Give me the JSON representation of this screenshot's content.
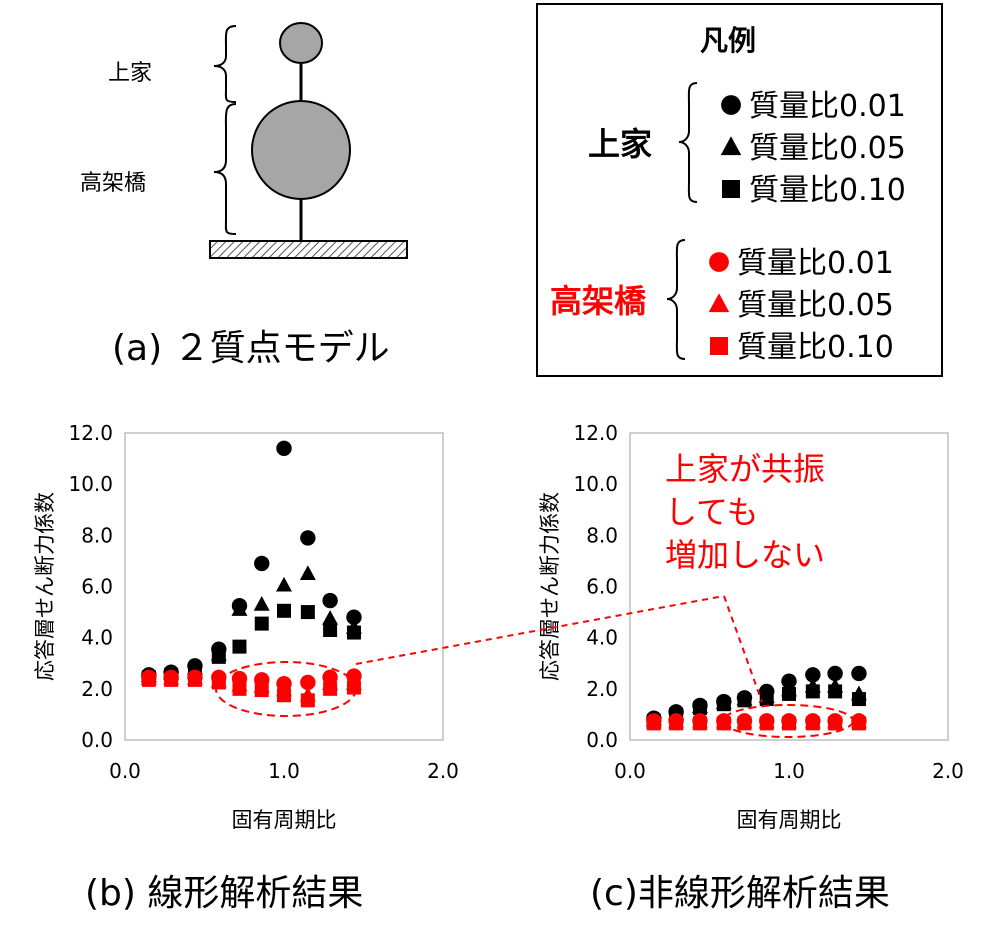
{
  "model": {
    "label_upper": "上家",
    "label_lower": "高架橋",
    "caption": "(a) ２質点モデル"
  },
  "legend": {
    "title": "凡例",
    "groups": [
      {
        "name": "上家",
        "color": "#000000",
        "entries": [
          {
            "marker": "circle",
            "label": "質量比0.01"
          },
          {
            "marker": "triangle",
            "label": "質量比0.05"
          },
          {
            "marker": "square",
            "label": "質量比0.10"
          }
        ]
      },
      {
        "name": "高架橋",
        "color": "#ff0000",
        "entries": [
          {
            "marker": "circle",
            "label": "質量比0.01"
          },
          {
            "marker": "triangle",
            "label": "質量比0.05"
          },
          {
            "marker": "square",
            "label": "質量比0.10"
          }
        ]
      }
    ]
  },
  "chart_data": [
    {
      "type": "scatter",
      "caption": "(b) 線形解析結果",
      "xlabel": "固有周期比",
      "ylabel": "応答層せん断力係数",
      "xlim": [
        0,
        2
      ],
      "ylim": [
        0,
        12
      ],
      "xticks": [
        "0.0",
        "1.0",
        "2.0"
      ],
      "yticks": [
        "0.0",
        "2.0",
        "4.0",
        "6.0",
        "8.0",
        "10.0",
        "12.0"
      ],
      "grid": false,
      "series": [
        {
          "group": "上家",
          "marker": "circle",
          "color": "#000000",
          "x": [
            0.15,
            0.29,
            0.44,
            0.59,
            0.72,
            0.86,
            1.0,
            1.15,
            1.29,
            1.44
          ],
          "y": [
            2.55,
            2.65,
            2.9,
            3.55,
            5.25,
            6.9,
            11.4,
            7.9,
            5.45,
            4.8
          ]
        },
        {
          "group": "上家",
          "marker": "triangle",
          "color": "#000000",
          "x": [
            0.15,
            0.29,
            0.44,
            0.59,
            0.72,
            0.86,
            1.0,
            1.15,
            1.29,
            1.44
          ],
          "y": [
            2.5,
            2.6,
            2.8,
            3.35,
            5.1,
            5.3,
            6.05,
            6.5,
            4.75,
            4.4
          ]
        },
        {
          "group": "上家",
          "marker": "square",
          "color": "#000000",
          "x": [
            0.15,
            0.29,
            0.44,
            0.59,
            0.72,
            0.86,
            1.0,
            1.15,
            1.29,
            1.44
          ],
          "y": [
            2.45,
            2.55,
            2.7,
            3.25,
            3.65,
            4.55,
            5.05,
            5.0,
            4.3,
            4.2
          ]
        },
        {
          "group": "高架橋",
          "marker": "circle",
          "color": "#ff0000",
          "x": [
            0.15,
            0.29,
            0.44,
            0.59,
            0.72,
            0.86,
            1.0,
            1.15,
            1.29,
            1.44
          ],
          "y": [
            2.45,
            2.45,
            2.45,
            2.45,
            2.4,
            2.35,
            2.2,
            2.25,
            2.45,
            2.5
          ]
        },
        {
          "group": "高架橋",
          "marker": "triangle",
          "color": "#ff0000",
          "x": [
            0.15,
            0.29,
            0.44,
            0.59,
            0.72,
            0.86,
            1.0,
            1.15,
            1.29,
            1.44
          ],
          "y": [
            2.4,
            2.4,
            2.4,
            2.3,
            2.15,
            2.1,
            1.95,
            1.75,
            2.2,
            2.2
          ]
        },
        {
          "group": "高架橋",
          "marker": "square",
          "color": "#ff0000",
          "x": [
            0.15,
            0.29,
            0.44,
            0.59,
            0.72,
            0.86,
            1.0,
            1.15,
            1.29,
            1.44
          ],
          "y": [
            2.35,
            2.35,
            2.35,
            2.25,
            2.0,
            1.95,
            1.75,
            1.55,
            2.0,
            2.05
          ]
        }
      ]
    },
    {
      "type": "scatter",
      "caption": "(c)非線形解析結果",
      "xlabel": "固有周期比",
      "ylabel": "応答層せん断力係数",
      "xlim": [
        0,
        2
      ],
      "ylim": [
        0,
        12
      ],
      "xticks": [
        "0.0",
        "1.0",
        "2.0"
      ],
      "yticks": [
        "0.0",
        "2.0",
        "4.0",
        "6.0",
        "8.0",
        "10.0",
        "12.0"
      ],
      "grid": false,
      "annotation": [
        "上家が共振",
        "しても",
        "増加しない"
      ],
      "series": [
        {
          "group": "上家",
          "marker": "circle",
          "color": "#000000",
          "x": [
            0.15,
            0.29,
            0.44,
            0.59,
            0.72,
            0.86,
            1.0,
            1.15,
            1.29,
            1.44
          ],
          "y": [
            0.85,
            1.1,
            1.35,
            1.5,
            1.65,
            1.9,
            2.3,
            2.55,
            2.6,
            2.6
          ]
        },
        {
          "group": "上家",
          "marker": "triangle",
          "color": "#000000",
          "x": [
            0.15,
            0.29,
            0.44,
            0.59,
            0.72,
            0.86,
            1.0,
            1.15,
            1.29,
            1.44
          ],
          "y": [
            0.8,
            1.05,
            1.3,
            1.45,
            1.6,
            1.7,
            1.95,
            2.1,
            2.1,
            1.8
          ]
        },
        {
          "group": "上家",
          "marker": "square",
          "color": "#000000",
          "x": [
            0.15,
            0.29,
            0.44,
            0.59,
            0.72,
            0.86,
            1.0,
            1.15,
            1.29,
            1.44
          ],
          "y": [
            0.75,
            1.0,
            1.25,
            1.4,
            1.55,
            1.6,
            1.8,
            1.9,
            1.9,
            1.6
          ]
        },
        {
          "group": "高架橋",
          "marker": "circle",
          "color": "#ff0000",
          "x": [
            0.15,
            0.29,
            0.44,
            0.59,
            0.72,
            0.86,
            1.0,
            1.15,
            1.29,
            1.44
          ],
          "y": [
            0.75,
            0.75,
            0.75,
            0.75,
            0.75,
            0.75,
            0.75,
            0.75,
            0.75,
            0.75
          ]
        },
        {
          "group": "高架橋",
          "marker": "triangle",
          "color": "#ff0000",
          "x": [
            0.15,
            0.29,
            0.44,
            0.59,
            0.72,
            0.86,
            1.0,
            1.15,
            1.29,
            1.44
          ],
          "y": [
            0.7,
            0.7,
            0.7,
            0.7,
            0.7,
            0.7,
            0.7,
            0.7,
            0.7,
            0.7
          ]
        },
        {
          "group": "高架橋",
          "marker": "square",
          "color": "#ff0000",
          "x": [
            0.15,
            0.29,
            0.44,
            0.59,
            0.72,
            0.86,
            1.0,
            1.15,
            1.29,
            1.44
          ],
          "y": [
            0.65,
            0.65,
            0.65,
            0.65,
            0.65,
            0.65,
            0.65,
            0.65,
            0.65,
            0.65
          ]
        }
      ]
    }
  ]
}
